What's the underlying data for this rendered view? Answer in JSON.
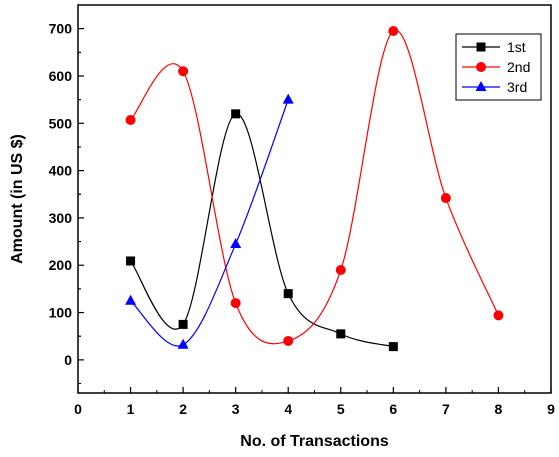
{
  "chart_data": {
    "type": "line",
    "xlabel": "No. of Transactions",
    "ylabel": "Amount (in US $)",
    "xlim": [
      0,
      9
    ],
    "ylim": [
      -70,
      750
    ],
    "xticks": [
      0,
      1,
      2,
      3,
      4,
      5,
      6,
      7,
      8,
      9
    ],
    "yticks": [
      0,
      100,
      200,
      300,
      400,
      500,
      600,
      700
    ],
    "grid": false,
    "legend_position": "top-right",
    "smooth": true,
    "series": [
      {
        "name": "1st",
        "color": "#000000",
        "marker": "square",
        "x": [
          1,
          2,
          3,
          4,
          5,
          6
        ],
        "y": [
          209,
          75,
          520,
          140,
          55,
          28
        ]
      },
      {
        "name": "2nd",
        "color": "#ff0000",
        "marker": "circle",
        "x": [
          1,
          2,
          3,
          4,
          5,
          6,
          7,
          8
        ],
        "y": [
          507,
          610,
          120,
          40,
          190,
          695,
          342,
          94
        ]
      },
      {
        "name": "3rd",
        "color": "#0000ff",
        "marker": "triangle",
        "x": [
          1,
          2,
          3,
          4
        ],
        "y": [
          125,
          32,
          245,
          550
        ]
      }
    ]
  }
}
